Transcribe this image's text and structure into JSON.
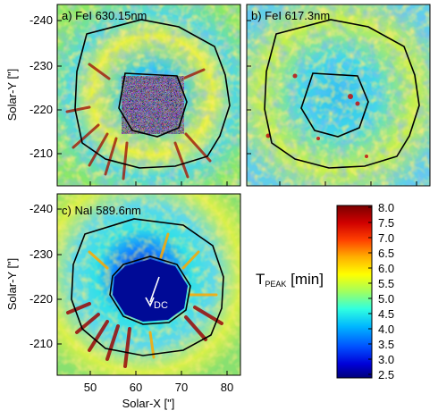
{
  "figure": {
    "panels": [
      {
        "id": "a",
        "label": "a) FeI 630.15nm"
      },
      {
        "id": "b",
        "label": "b) FeI 617.3nm"
      },
      {
        "id": "c",
        "label": "c) NaI 589.6nm"
      }
    ],
    "y_axis": {
      "label": "Solar-Y [\"]",
      "ticks": [
        "-240",
        "-230",
        "-220",
        "-210"
      ]
    },
    "x_axis": {
      "label": "Solar-X [\"]",
      "ticks": [
        "50",
        "60",
        "70",
        "80"
      ]
    },
    "colorbar": {
      "label_main": "T",
      "label_sub": "PEAK",
      "label_unit": " [min]",
      "ticks": [
        "8.0",
        "7.5",
        "7.0",
        "6.5",
        "6.0",
        "5.5",
        "5.0",
        "4.5",
        "4.0",
        "3.5",
        "3.0",
        "2.5"
      ],
      "range": [
        2.5,
        8.0
      ]
    },
    "annotation": {
      "text": "DC"
    }
  },
  "chart_data": {
    "type": "heatmap",
    "xlabel": "Solar-X [\"]",
    "ylabel": "Solar-Y [\"]",
    "xlim": [
      43,
      83
    ],
    "ylim": [
      -244,
      -204
    ],
    "colorbar_range": [
      2.5,
      8.0
    ],
    "colorbar_label": "T_PEAK [min]"
  }
}
